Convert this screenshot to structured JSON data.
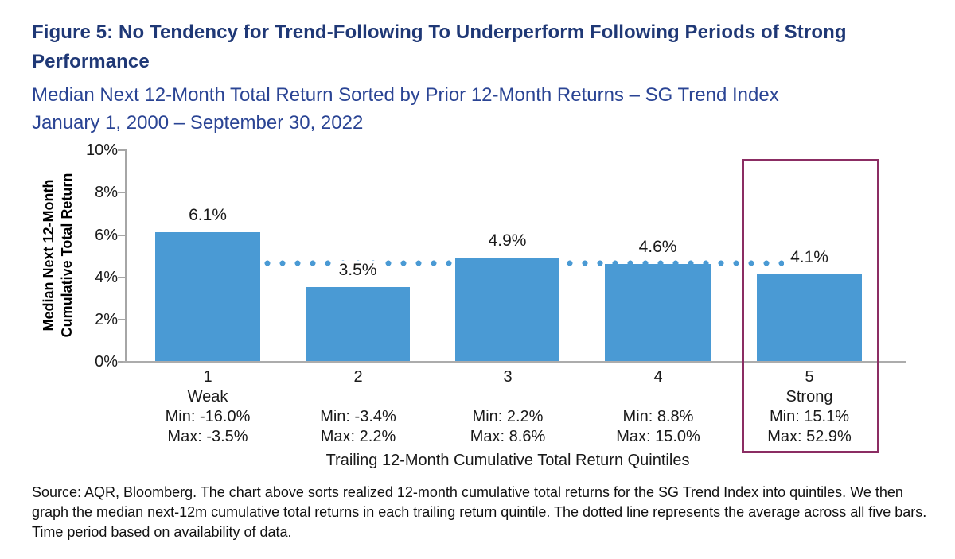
{
  "page": {
    "title_line1": "Figure 5: No Tendency for Trend-Following To Underperform Following Periods of Strong",
    "title_line2": "Performance",
    "subtitle_line1": "Median Next 12-Month Total Return Sorted by Prior 12-Month Returns – SG Trend Index",
    "subtitle_line2": "January 1, 2000 – September 30, 2022",
    "source_note": "Source: AQR, Bloomberg. The chart above sorts realized 12-month cumulative total returns for the SG Trend Index into quintiles. We then graph the median next-12m cumulative total returns in each trailing return quintile. The dotted line represents the average across all five bars. Time period based on availability of data."
  },
  "colors": {
    "bar_blue": "#4A9AD4",
    "title_navy": "#1F3876",
    "subtitle_blue": "#2A4494",
    "highlight_purple": "#8B2D63",
    "axis_gray": "#A6A6A6"
  },
  "chart_data": {
    "type": "bar",
    "title": "Median Next 12-Month Total Return Sorted by Prior 12-Month Returns – SG Trend Index, January 1, 2000 – September 30, 2022",
    "categories": [
      "1",
      "2",
      "3",
      "4",
      "5"
    ],
    "category_sublabels": [
      "Weak",
      "",
      "",
      "",
      "Strong"
    ],
    "ranges": [
      {
        "min": "Min: -16.0%",
        "max": "Max: -3.5%"
      },
      {
        "min": "Min: -3.4%",
        "max": "Max: 2.2%"
      },
      {
        "min": "Min: 2.2%",
        "max": "Max: 8.6%"
      },
      {
        "min": "Min: 8.8%",
        "max": "Max: 15.0%"
      },
      {
        "min": "Min: 15.1%",
        "max": "Max: 52.9%"
      }
    ],
    "values": [
      6.1,
      3.5,
      4.9,
      4.6,
      4.1
    ],
    "value_labels": [
      "6.1%",
      "3.5%",
      "4.9%",
      "4.6%",
      "4.1%"
    ],
    "average_line_value": 4.64,
    "average_line_note": "dotted line = average across all five bars",
    "xlabel": "Trailing 12-Month Cumulative Total Return Quintiles",
    "ylabel_line1": "Median Next 12-Month",
    "ylabel_line2": "Cumulative Total Return",
    "ylim": [
      0,
      10
    ],
    "ytick_labels": [
      "10%",
      "8%",
      "6%",
      "4%",
      "2%",
      "0%"
    ],
    "grid": false,
    "legend": "none",
    "highlighted_category_index": 4
  }
}
